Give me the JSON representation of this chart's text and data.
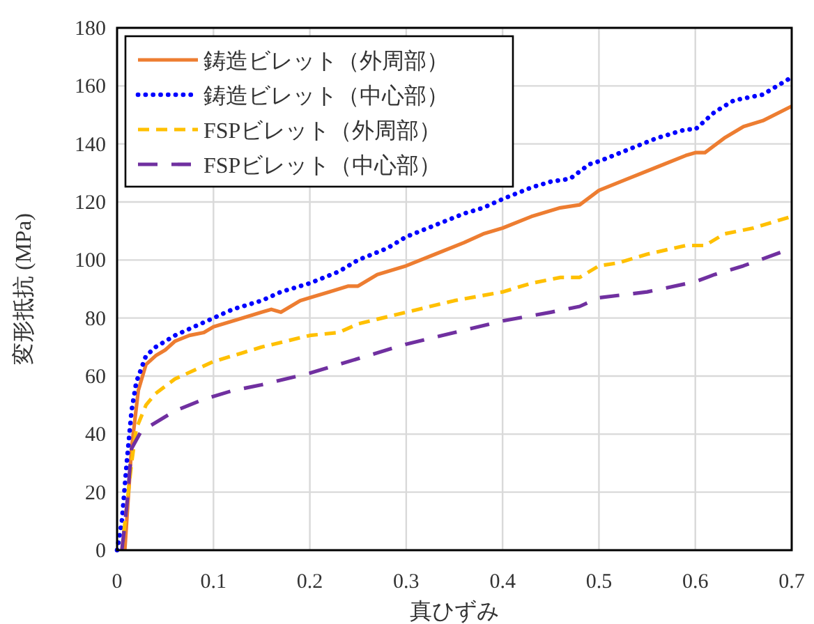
{
  "chart_data": {
    "type": "line",
    "xlabel": "真ひずみ",
    "ylabel": "変形抵抗 (MPa)",
    "xlim": [
      0,
      0.7
    ],
    "xticks": [
      0,
      0.1,
      0.2,
      0.3,
      0.4,
      0.5,
      0.6,
      0.7
    ],
    "ylim": [
      0,
      180
    ],
    "yticks": [
      0,
      20,
      40,
      60,
      80,
      100,
      120,
      140,
      160,
      180
    ],
    "grid": true,
    "legend": "top left",
    "marker": "none",
    "series": [
      {
        "name": "鋳造ビレット（外周部）",
        "color": "#ed7d31",
        "line_style": "solid",
        "x": [
          0.008,
          0.015,
          0.022,
          0.03,
          0.04,
          0.05,
          0.06,
          0.075,
          0.09,
          0.1,
          0.13,
          0.15,
          0.16,
          0.17,
          0.18,
          0.19,
          0.2,
          0.22,
          0.24,
          0.25,
          0.27,
          0.3,
          0.33,
          0.36,
          0.38,
          0.4,
          0.43,
          0.46,
          0.48,
          0.5,
          0.53,
          0.56,
          0.59,
          0.6,
          0.61,
          0.63,
          0.65,
          0.67,
          0.7
        ],
        "values": [
          0,
          35,
          55,
          64,
          67,
          69,
          72,
          74,
          75,
          77,
          80,
          82,
          83,
          82,
          84,
          86,
          87,
          89,
          91,
          91,
          95,
          98,
          102,
          106,
          109,
          111,
          115,
          118,
          119,
          124,
          128,
          132,
          136,
          137,
          137,
          142,
          146,
          148,
          153
        ]
      },
      {
        "name": "鋳造ビレット（中心部）",
        "color": "#0000ff",
        "line_style": "dotted",
        "x": [
          0,
          0.005,
          0.01,
          0.015,
          0.02,
          0.03,
          0.04,
          0.06,
          0.08,
          0.1,
          0.12,
          0.15,
          0.17,
          0.2,
          0.23,
          0.25,
          0.28,
          0.3,
          0.33,
          0.36,
          0.38,
          0.4,
          0.43,
          0.45,
          0.47,
          0.49,
          0.5,
          0.53,
          0.56,
          0.59,
          0.6,
          0.62,
          0.64,
          0.67,
          0.7
        ],
        "values": [
          0,
          10,
          30,
          48,
          58,
          67,
          70,
          74,
          77,
          80,
          83,
          86,
          89,
          92,
          96,
          100,
          104,
          108,
          112,
          116,
          118,
          121,
          125,
          127,
          128,
          133,
          134,
          138,
          142,
          145,
          145,
          151,
          155,
          157,
          163
        ]
      },
      {
        "name": "FSPビレット（外周部）",
        "color": "#ffc000",
        "line_style": "dashed",
        "x": [
          0.005,
          0.015,
          0.02,
          0.03,
          0.04,
          0.06,
          0.08,
          0.1,
          0.13,
          0.15,
          0.2,
          0.23,
          0.25,
          0.3,
          0.35,
          0.4,
          0.43,
          0.46,
          0.48,
          0.5,
          0.52,
          0.55,
          0.59,
          0.61,
          0.63,
          0.66,
          0.7
        ],
        "values": [
          0,
          30,
          42,
          50,
          54,
          59,
          62,
          65,
          68,
          70,
          74,
          75,
          78,
          82,
          86,
          89,
          92,
          94,
          94,
          98,
          99,
          102,
          105,
          105,
          109,
          111,
          115
        ]
      },
      {
        "name": "FSPビレット（中心部）",
        "color": "#7030a0",
        "line_style": "dashed",
        "x": [
          0.005,
          0.01,
          0.015,
          0.025,
          0.04,
          0.06,
          0.09,
          0.12,
          0.15,
          0.2,
          0.23,
          0.25,
          0.3,
          0.35,
          0.4,
          0.45,
          0.48,
          0.5,
          0.55,
          0.6,
          0.62,
          0.65,
          0.7
        ],
        "values": [
          0,
          15,
          35,
          41,
          44,
          48,
          52,
          55,
          57,
          61,
          64,
          66,
          71,
          75,
          79,
          82,
          84,
          87,
          89,
          92.5,
          95,
          98,
          104
        ]
      }
    ]
  }
}
